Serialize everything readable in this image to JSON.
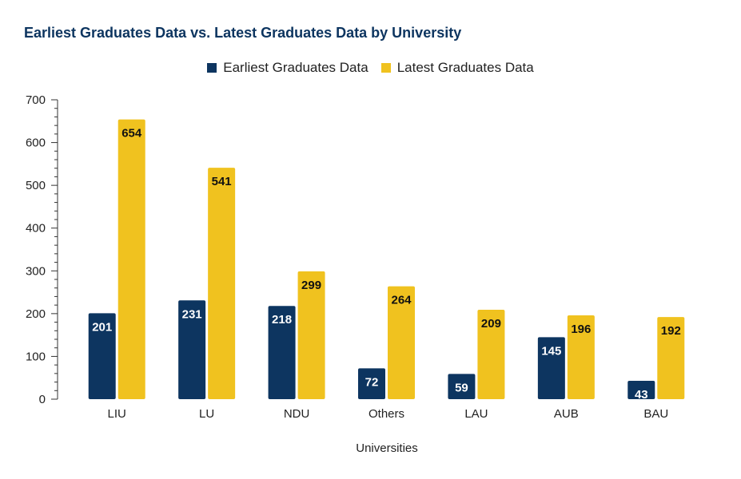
{
  "chart_data": {
    "type": "bar",
    "title": "Earliest Graduates Data vs. Latest Graduates Data by University",
    "xlabel": "Universities",
    "ylabel": "",
    "categories": [
      "LIU",
      "LU",
      "NDU",
      "Others",
      "LAU",
      "AUB",
      "BAU"
    ],
    "series": [
      {
        "name": "Earliest Graduates Data",
        "color": "#0d3560",
        "label_color": "#ffffff",
        "values": [
          201,
          231,
          218,
          72,
          59,
          145,
          43
        ]
      },
      {
        "name": "Latest Graduates Data",
        "color": "#f0c21f",
        "label_color": "#111111",
        "values": [
          654,
          541,
          299,
          264,
          209,
          196,
          192
        ]
      }
    ],
    "ylim": [
      0,
      700
    ],
    "yticks": [
      0,
      100,
      200,
      300,
      400,
      500,
      600,
      700
    ],
    "grid": false,
    "legend_position": "top-center"
  }
}
